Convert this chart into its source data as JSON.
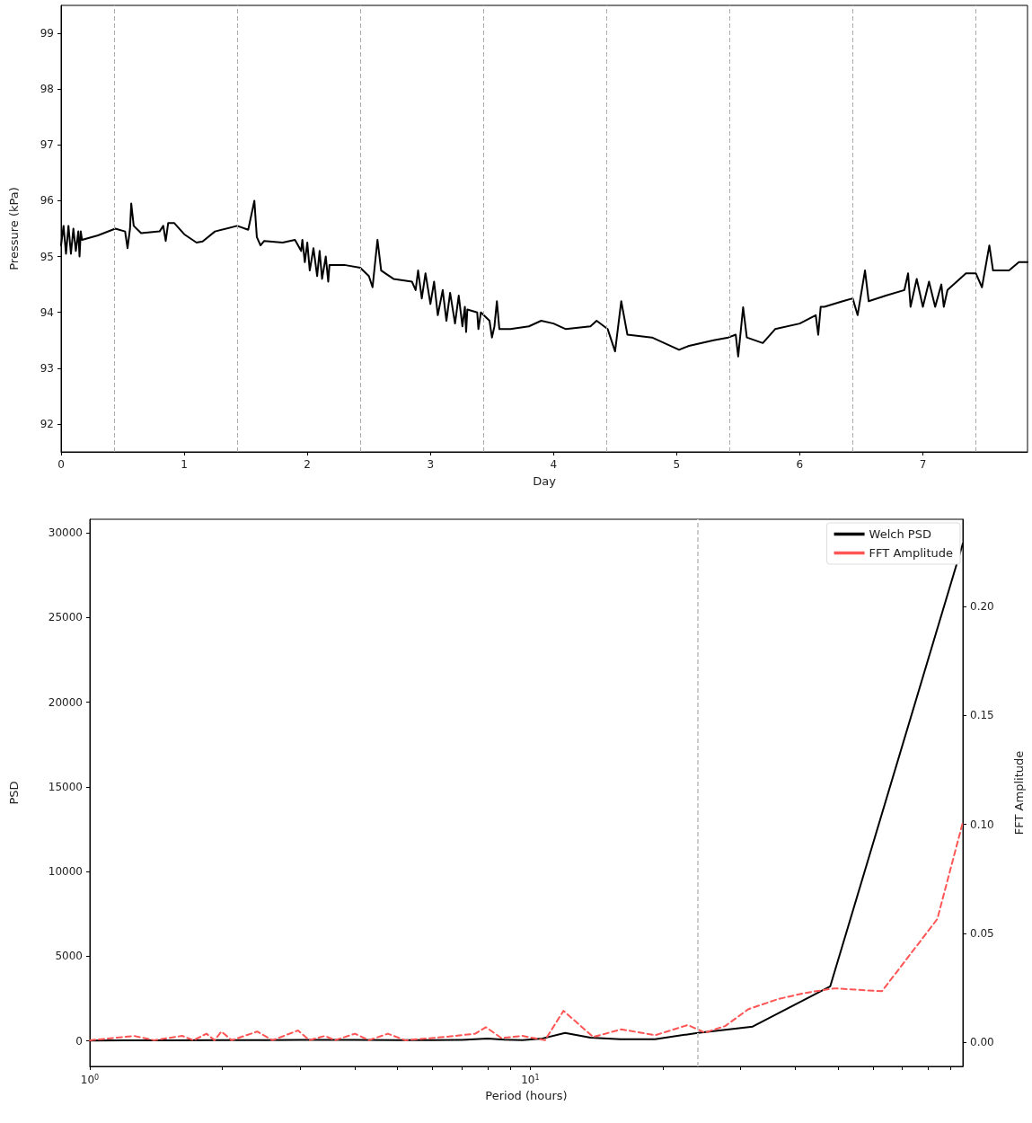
{
  "chart_data": [
    {
      "type": "line",
      "xlabel": "Day",
      "ylabel": "Pressure (kPa)",
      "xlim": [
        0,
        7.85
      ],
      "ylim": [
        91.5,
        99.5
      ],
      "xticks": [
        0,
        1,
        2,
        3,
        4,
        5,
        6,
        7
      ],
      "yticks": [
        92,
        93,
        94,
        95,
        96,
        97,
        98,
        99
      ],
      "series": [
        {
          "color": "#000000",
          "line_style": "solid",
          "x": [
            0,
            0.02,
            0.04,
            0.06,
            0.08,
            0.1,
            0.12,
            0.14,
            0.15,
            0.16,
            0.17,
            0.3,
            0.44,
            0.52,
            0.54,
            0.56,
            0.57,
            0.59,
            0.65,
            0.8,
            0.83,
            0.85,
            0.87,
            0.92,
            1.0,
            1.1,
            1.15,
            1.25,
            1.43,
            1.52,
            1.57,
            1.59,
            1.62,
            1.65,
            1.8,
            1.9,
            1.95,
            1.96,
            1.98,
            2.0,
            2.02,
            2.05,
            2.08,
            2.1,
            2.12,
            2.15,
            2.17,
            2.18,
            2.3,
            2.43,
            2.5,
            2.53,
            2.57,
            2.6,
            2.7,
            2.85,
            2.88,
            2.9,
            2.93,
            2.96,
            3.0,
            3.03,
            3.06,
            3.1,
            3.13,
            3.16,
            3.2,
            3.23,
            3.26,
            3.28,
            3.29,
            3.3,
            3.38,
            3.39,
            3.41,
            3.48,
            3.5,
            3.52,
            3.54,
            3.56,
            3.65,
            3.8,
            3.9,
            4.0,
            4.1,
            4.3,
            4.35,
            4.44,
            4.5,
            4.55,
            4.6,
            4.8,
            5.02,
            5.1,
            5.3,
            5.42,
            5.48,
            5.5,
            5.54,
            5.57,
            5.7,
            5.8,
            6.0,
            6.13,
            6.15,
            6.17,
            6.2,
            6.35,
            6.43,
            6.47,
            6.53,
            6.56,
            6.7,
            6.85,
            6.88,
            6.9,
            6.95,
            7.0,
            7.05,
            7.1,
            7.15,
            7.17,
            7.2,
            7.35,
            7.43,
            7.48,
            7.54,
            7.57,
            7.7,
            7.78,
            7.85
          ],
          "values": [
            95.2,
            95.55,
            95.05,
            95.55,
            95.05,
            95.5,
            95.1,
            95.45,
            95.0,
            95.45,
            95.3,
            95.38,
            95.5,
            95.45,
            95.15,
            95.5,
            95.95,
            95.55,
            95.42,
            95.45,
            95.55,
            95.28,
            95.6,
            95.6,
            95.4,
            95.25,
            95.27,
            95.45,
            95.55,
            95.48,
            96.0,
            95.35,
            95.2,
            95.28,
            95.25,
            95.3,
            95.1,
            95.3,
            94.9,
            95.25,
            94.75,
            95.15,
            94.65,
            95.1,
            94.6,
            95.0,
            94.55,
            94.85,
            94.85,
            94.8,
            94.65,
            94.45,
            95.3,
            94.75,
            94.6,
            94.55,
            94.4,
            94.75,
            94.25,
            94.7,
            94.15,
            94.55,
            93.95,
            94.4,
            93.85,
            94.35,
            93.8,
            94.3,
            93.75,
            94.1,
            93.65,
            94.05,
            94.0,
            93.7,
            94.0,
            93.85,
            93.55,
            93.75,
            94.2,
            93.7,
            93.7,
            93.75,
            93.85,
            93.8,
            93.7,
            93.75,
            93.85,
            93.7,
            93.3,
            94.2,
            93.6,
            93.55,
            93.33,
            93.4,
            93.5,
            93.55,
            93.6,
            93.21,
            94.09,
            93.55,
            93.45,
            93.7,
            93.8,
            93.95,
            93.6,
            94.1,
            94.1,
            94.2,
            94.25,
            93.95,
            94.75,
            94.2,
            94.3,
            94.4,
            94.7,
            94.1,
            94.6,
            94.1,
            94.55,
            94.1,
            94.5,
            94.1,
            94.4,
            94.7,
            94.7,
            94.45,
            95.2,
            94.75,
            94.75,
            94.9,
            94.9
          ]
        }
      ],
      "ref_lines": [
        {
          "axis": "x",
          "value": 0.43,
          "color": "#aaaaaa",
          "line_style": "dashed"
        },
        {
          "axis": "x",
          "value": 1.43,
          "color": "#aaaaaa",
          "line_style": "dashed"
        },
        {
          "axis": "x",
          "value": 2.43,
          "color": "#aaaaaa",
          "line_style": "dashed"
        },
        {
          "axis": "x",
          "value": 3.43,
          "color": "#aaaaaa",
          "line_style": "dashed"
        },
        {
          "axis": "x",
          "value": 4.43,
          "color": "#aaaaaa",
          "line_style": "dashed"
        },
        {
          "axis": "x",
          "value": 5.43,
          "color": "#aaaaaa",
          "line_style": "dashed"
        },
        {
          "axis": "x",
          "value": 6.43,
          "color": "#aaaaaa",
          "line_style": "dashed"
        },
        {
          "axis": "x",
          "value": 7.43,
          "color": "#aaaaaa",
          "line_style": "dashed"
        }
      ]
    },
    {
      "type": "line",
      "xlabel": "Period (hours)",
      "ylabel": "PSD",
      "y2label": "FFT Amplitude",
      "log": "x",
      "legend": "top right",
      "xlim": [
        1,
        96
      ],
      "ylim": [
        -1500,
        30800
      ],
      "y2lim": [
        -0.011,
        0.24
      ],
      "xticks": [
        {
          "value": 1,
          "label": "10$^{0}$"
        },
        {
          "value": 2,
          "label": null
        },
        {
          "value": 3,
          "label": null
        },
        {
          "value": 4,
          "label": null
        },
        {
          "value": 5,
          "label": null
        },
        {
          "value": 6,
          "label": null
        },
        {
          "value": 7,
          "label": null
        },
        {
          "value": 8,
          "label": null
        },
        {
          "value": 9,
          "label": null
        },
        {
          "value": 10,
          "label": "10$^{1}$"
        },
        {
          "value": 20,
          "label": null
        },
        {
          "value": 30,
          "label": null
        },
        {
          "value": 40,
          "label": null
        },
        {
          "value": 50,
          "label": null
        },
        {
          "value": 60,
          "label": null
        },
        {
          "value": 70,
          "label": null
        },
        {
          "value": 80,
          "label": null
        },
        {
          "value": 90,
          "label": null
        }
      ],
      "yticks": [
        0,
        5000,
        10000,
        15000,
        20000,
        25000,
        30000
      ],
      "y2ticks": [
        {
          "value": 0,
          "label": "0.00"
        },
        {
          "value": 0.05,
          "label": "0.05"
        },
        {
          "value": 0.1,
          "label": "0.10"
        },
        {
          "value": 0.15,
          "label": "0.15"
        },
        {
          "value": 0.2,
          "label": "0.20"
        }
      ],
      "series": [
        {
          "name": "Welch PSD",
          "color": "#000000",
          "line_style": "solid",
          "x": [
            1,
            1.2,
            1.5,
            2,
            2.5,
            3,
            4,
            5,
            6,
            7,
            8,
            8.73,
            9.6,
            10.67,
            12,
            13.71,
            16,
            19.2,
            24,
            32,
            48,
            96
          ],
          "values": [
            30,
            40,
            40,
            50,
            50,
            60,
            60,
            50,
            50,
            60,
            150,
            80,
            50,
            150,
            480,
            200,
            100,
            100,
            480,
            850,
            3230,
            29370
          ]
        },
        {
          "name": "FFT Amplitude",
          "color": "#ff5555",
          "line_style": "dashed",
          "axis": "y2",
          "x": [
            1,
            1.13,
            1.26,
            1.4,
            1.62,
            1.72,
            1.84,
            1.92,
            1.99,
            2.1,
            2.4,
            2.6,
            2.97,
            3.15,
            3.42,
            3.6,
            4.0,
            4.3,
            4.75,
            5.2,
            6.4,
            7.5,
            7.93,
            8.6,
            9.6,
            10.8,
            11.9,
            13.9,
            16.1,
            19.2,
            22.8,
            24.9,
            27.7,
            31.3,
            36.7,
            42.1,
            49,
            62.9,
            84,
            96
          ],
          "values": [
            0.001,
            0.002,
            0.003,
            0.001,
            0.003,
            0.001,
            0.004,
            0.001,
            0.005,
            0.001,
            0.005,
            0.001,
            0.0055,
            0.001,
            0.003,
            0.001,
            0.004,
            0.001,
            0.004,
            0.001,
            0.0025,
            0.004,
            0.007,
            0.002,
            0.003,
            0.001,
            0.0145,
            0.0025,
            0.006,
            0.0033,
            0.008,
            0.0045,
            0.0075,
            0.0153,
            0.02,
            0.0227,
            0.0248,
            0.0235,
            0.0566,
            0.101
          ]
        }
      ],
      "ref_lines": [
        {
          "axis": "x",
          "value": 24,
          "color": "#cccccc",
          "line_style": "dashed"
        }
      ]
    }
  ]
}
